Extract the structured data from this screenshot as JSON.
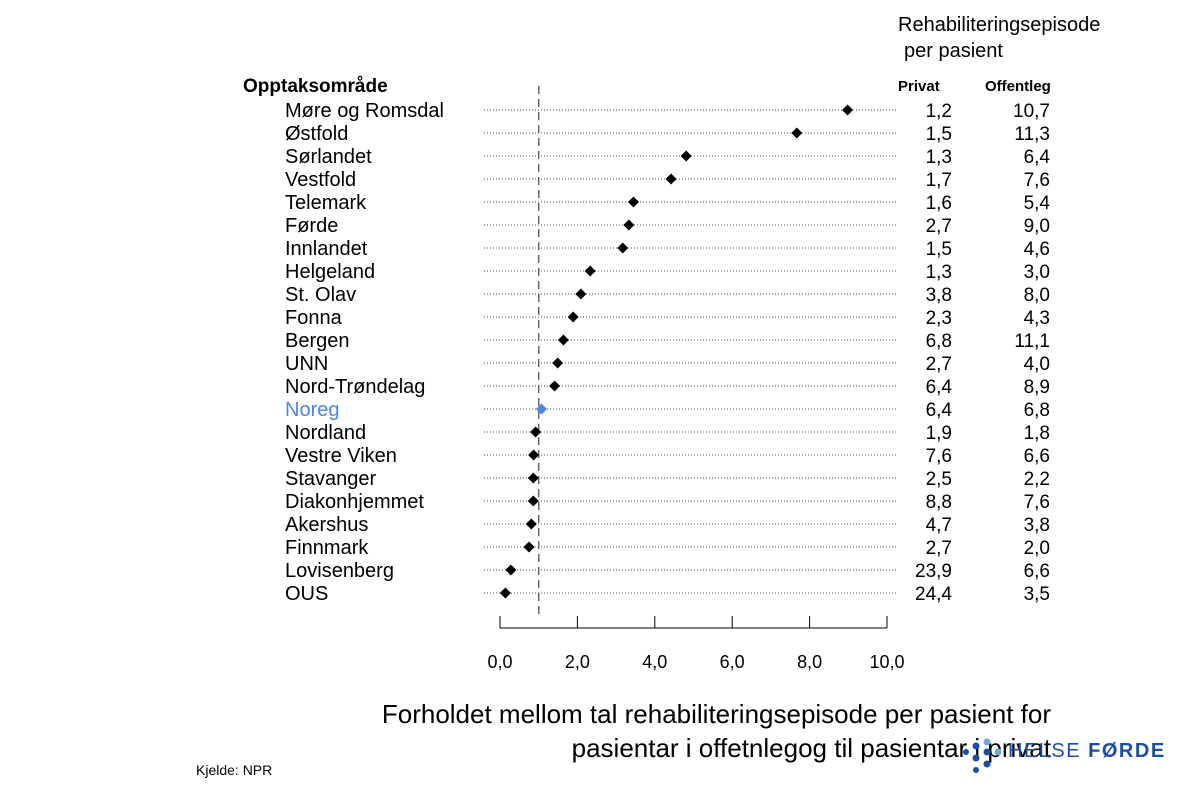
{
  "column_title_line1": "Rehabiliteringsepisode",
  "column_title_line2": "per pasient",
  "area_header": "Opptaksområde",
  "col_privat": "Privat",
  "col_offentleg": "Offentleg",
  "caption_line1": "Forholdet mellom tal rehabiliteringsepisode per pasient for",
  "caption_line2": "pasientar i offetnlegog til pasientar i privat",
  "source": "Kjelde: NPR",
  "logo_text_part1": "HELSE ",
  "logo_text_part2": "FØRDE",
  "colors": {
    "point": "#000000",
    "highlight": "#4a86e8",
    "logo": "#1a4ea3",
    "refline": "#666666"
  },
  "chart_data": {
    "type": "scatter",
    "title": "",
    "xlabel": "",
    "ylabel": "",
    "xlim": [
      0,
      10
    ],
    "x_ticks": [
      "0,0",
      "2,0",
      "4,0",
      "6,0",
      "8,0",
      "10,0"
    ],
    "reference_line": 1.0,
    "highlight": "Noreg",
    "rows": [
      {
        "name": "Møre og Romsdal",
        "ratio": 8.98,
        "privat": "1,2",
        "offentleg": "10,7"
      },
      {
        "name": "Østfold",
        "ratio": 7.67,
        "privat": "1,5",
        "offentleg": "11,3"
      },
      {
        "name": "Sørlandet",
        "ratio": 4.81,
        "privat": "1,3",
        "offentleg": "6,4"
      },
      {
        "name": "Vestfold",
        "ratio": 4.42,
        "privat": "1,7",
        "offentleg": "7,6"
      },
      {
        "name": "Telemark",
        "ratio": 3.45,
        "privat": "1,6",
        "offentleg": "5,4"
      },
      {
        "name": "Førde",
        "ratio": 3.33,
        "privat": "2,7",
        "offentleg": "9,0"
      },
      {
        "name": "Innlandet",
        "ratio": 3.17,
        "privat": "1,5",
        "offentleg": "4,6"
      },
      {
        "name": "Helgeland",
        "ratio": 2.33,
        "privat": "1,3",
        "offentleg": "3,0"
      },
      {
        "name": "St. Olav",
        "ratio": 2.09,
        "privat": "3,8",
        "offentleg": "8,0"
      },
      {
        "name": "Fonna",
        "ratio": 1.89,
        "privat": "2,3",
        "offentleg": "4,3"
      },
      {
        "name": "Bergen",
        "ratio": 1.64,
        "privat": "6,8",
        "offentleg": "11,1"
      },
      {
        "name": "UNN",
        "ratio": 1.49,
        "privat": "2,7",
        "offentleg": "4,0"
      },
      {
        "name": "Nord-Trøndelag",
        "ratio": 1.41,
        "privat": "6,4",
        "offentleg": "8,9"
      },
      {
        "name": "Noreg",
        "ratio": 1.07,
        "privat": "6,4",
        "offentleg": "6,8"
      },
      {
        "name": "Nordland",
        "ratio": 0.92,
        "privat": "1,9",
        "offentleg": "1,8"
      },
      {
        "name": "Vestre Viken",
        "ratio": 0.87,
        "privat": "7,6",
        "offentleg": "6,6"
      },
      {
        "name": "Stavanger",
        "ratio": 0.86,
        "privat": "2,5",
        "offentleg": "2,2"
      },
      {
        "name": "Diakonhjemmet",
        "ratio": 0.86,
        "privat": "8,8",
        "offentleg": "7,6"
      },
      {
        "name": "Akershus",
        "ratio": 0.81,
        "privat": "4,7",
        "offentleg": "3,8"
      },
      {
        "name": "Finnmark",
        "ratio": 0.75,
        "privat": "2,7",
        "offentleg": "2,0"
      },
      {
        "name": "Lovisenberg",
        "ratio": 0.28,
        "privat": "23,9",
        "offentleg": "6,6"
      },
      {
        "name": "OUS",
        "ratio": 0.14,
        "privat": "24,4",
        "offentleg": "3,5"
      }
    ]
  }
}
